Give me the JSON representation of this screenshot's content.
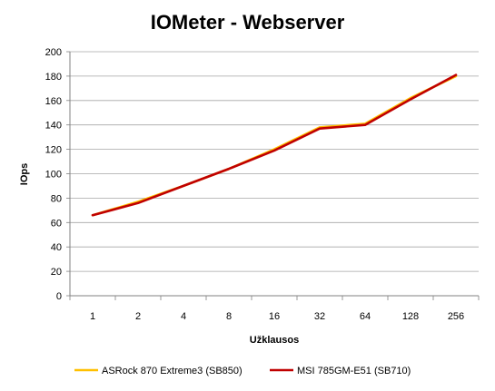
{
  "chart_data": {
    "type": "line",
    "title": "IOMeter - Webserver",
    "xlabel": "Užklausos",
    "ylabel": "IOps",
    "categories": [
      "1",
      "2",
      "4",
      "8",
      "16",
      "32",
      "64",
      "128",
      "256"
    ],
    "ylim": [
      0,
      200
    ],
    "yticks": [
      0,
      20,
      40,
      60,
      80,
      100,
      120,
      140,
      160,
      180,
      200
    ],
    "grid": true,
    "legend_position": "bottom",
    "series": [
      {
        "name": "ASRock 870 Extreme3 (SB850)",
        "color": "#FFC000",
        "values": [
          66,
          77,
          90,
          104,
          120,
          138,
          141,
          162,
          180
        ]
      },
      {
        "name": "MSI 785GM-E51 (SB710)",
        "color": "#C00000",
        "values": [
          66,
          76,
          90,
          104,
          119,
          137,
          140,
          161,
          181
        ]
      }
    ]
  }
}
